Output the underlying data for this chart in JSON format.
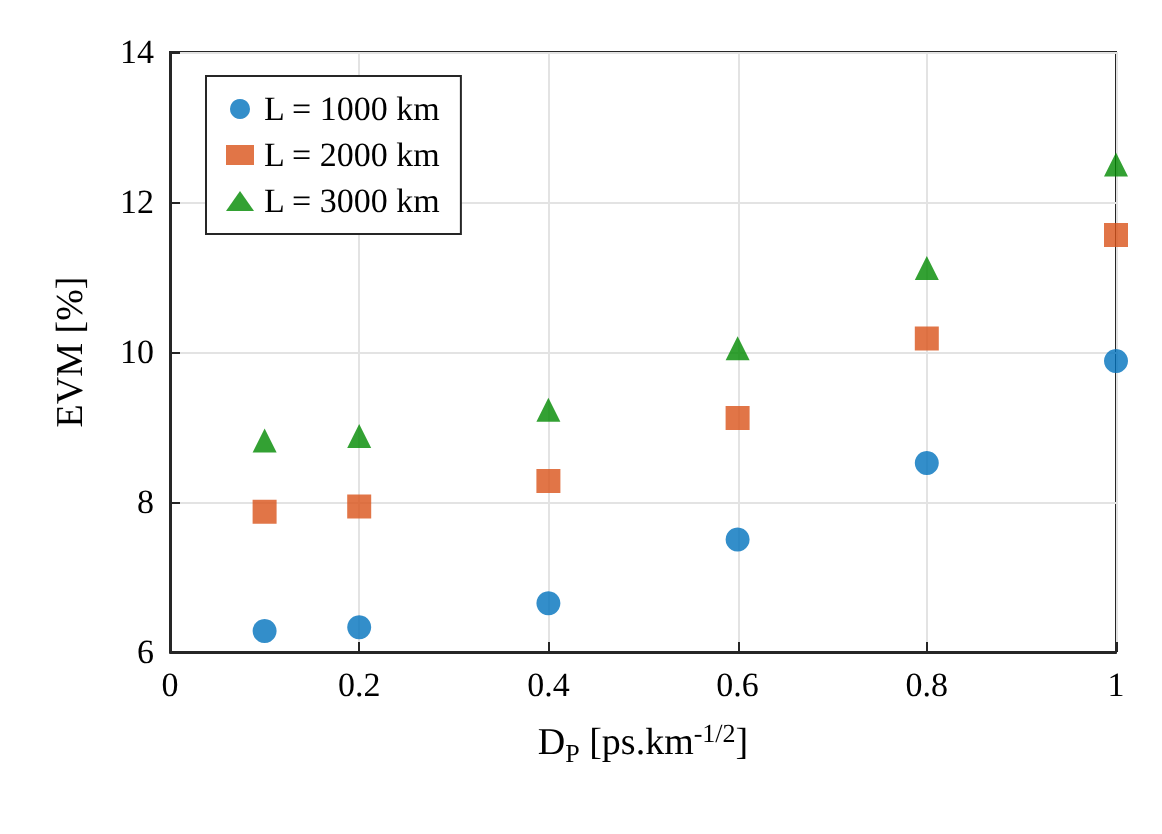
{
  "chart_data": {
    "type": "scatter",
    "xlabel": "D$_{P}$ [ps.km$^{-1/2}$]",
    "ylabel": "EVM [%]",
    "x": [
      0.1,
      0.2,
      0.4,
      0.6,
      0.8,
      1
    ],
    "series": [
      {
        "name": "L = 1000 km",
        "color": "#0072bd",
        "marker": "circle",
        "values": [
          6.28,
          6.33,
          6.65,
          7.5,
          8.52,
          9.88
        ]
      },
      {
        "name": "L = 2000 km",
        "color": "#d95319",
        "marker": "square",
        "values": [
          7.87,
          7.94,
          8.28,
          9.12,
          10.18,
          11.56
        ]
      },
      {
        "name": "L = 3000 km",
        "color": "#008a00",
        "marker": "triangle",
        "values": [
          8.82,
          8.88,
          9.23,
          10.05,
          11.12,
          12.5
        ]
      }
    ],
    "xlim": [
      0,
      1
    ],
    "xticks": [
      0,
      0.2,
      0.4,
      0.6,
      0.8,
      1
    ],
    "ylim": [
      6,
      14
    ],
    "yticks": [
      6,
      8,
      10,
      12,
      14
    ],
    "grid": true,
    "legend": "top left"
  }
}
